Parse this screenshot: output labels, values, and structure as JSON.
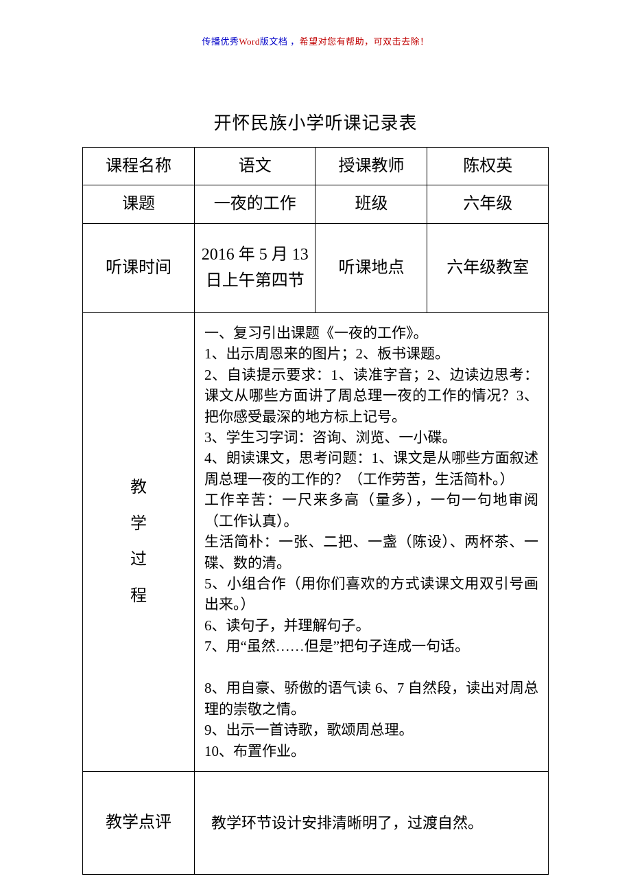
{
  "watermark": {
    "part1": "传播优秀",
    "part2": "Word",
    "part3": "版文档 ，",
    "part4": "希望对您有帮助，可双击去除！"
  },
  "title": "开怀民族小学听课记录表",
  "rows": {
    "r1": {
      "label": "课程名称",
      "v1": "语文",
      "v2": "授课教师",
      "v3": "陈权英"
    },
    "r2": {
      "label": "课题",
      "v1": "一夜的工作",
      "v2": "班级",
      "v3": "六年级"
    },
    "r3": {
      "label": "听课时间",
      "v1": "2016 年 5 月 13 日上午第四节",
      "v2": "听课地点",
      "v3": "六年级教室"
    }
  },
  "process": {
    "label_chars": {
      "c1": "教",
      "c2": "学",
      "c3": "过",
      "c4": "程"
    },
    "lines": [
      "一、复习引出课题《一夜的工作》。",
      "1、出示周恩来的图片；2、板书课题。",
      "2、自读提示要求：1、读准字音；2、边读边思考：课文从哪些方面讲了周总理一夜的工作的情况？3、把你感受最深的地方标上记号。",
      "3、学生习字词：咨询、浏览、一小碟。",
      "4、朗读课文，思考问题：1、课文是从哪些方面叙述周总理一夜的工作的？（工作劳苦，生活简朴。）",
      "工作辛苦：一尺来多高（量多），一句一句地审阅（工作认真）。",
      "生活简朴：一张、二把、一盏（陈设）、两杯茶、一碟、数的清。",
      "5、小组合作（用你们喜欢的方式读课文用双引号画出来。）",
      "6、读句子，并理解句子。",
      "7、用“虽然……但是”把句子连成一句话。",
      "",
      "8、用自豪、骄傲的语气读 6、7 自然段，读出对周总理的崇敬之情。",
      "9、出示一首诗歌，歌颂周总理。",
      "10、布置作业。"
    ]
  },
  "comment": {
    "label": "教学点评",
    "text": "教学环节设计安排清晰明了，过渡自然。"
  }
}
